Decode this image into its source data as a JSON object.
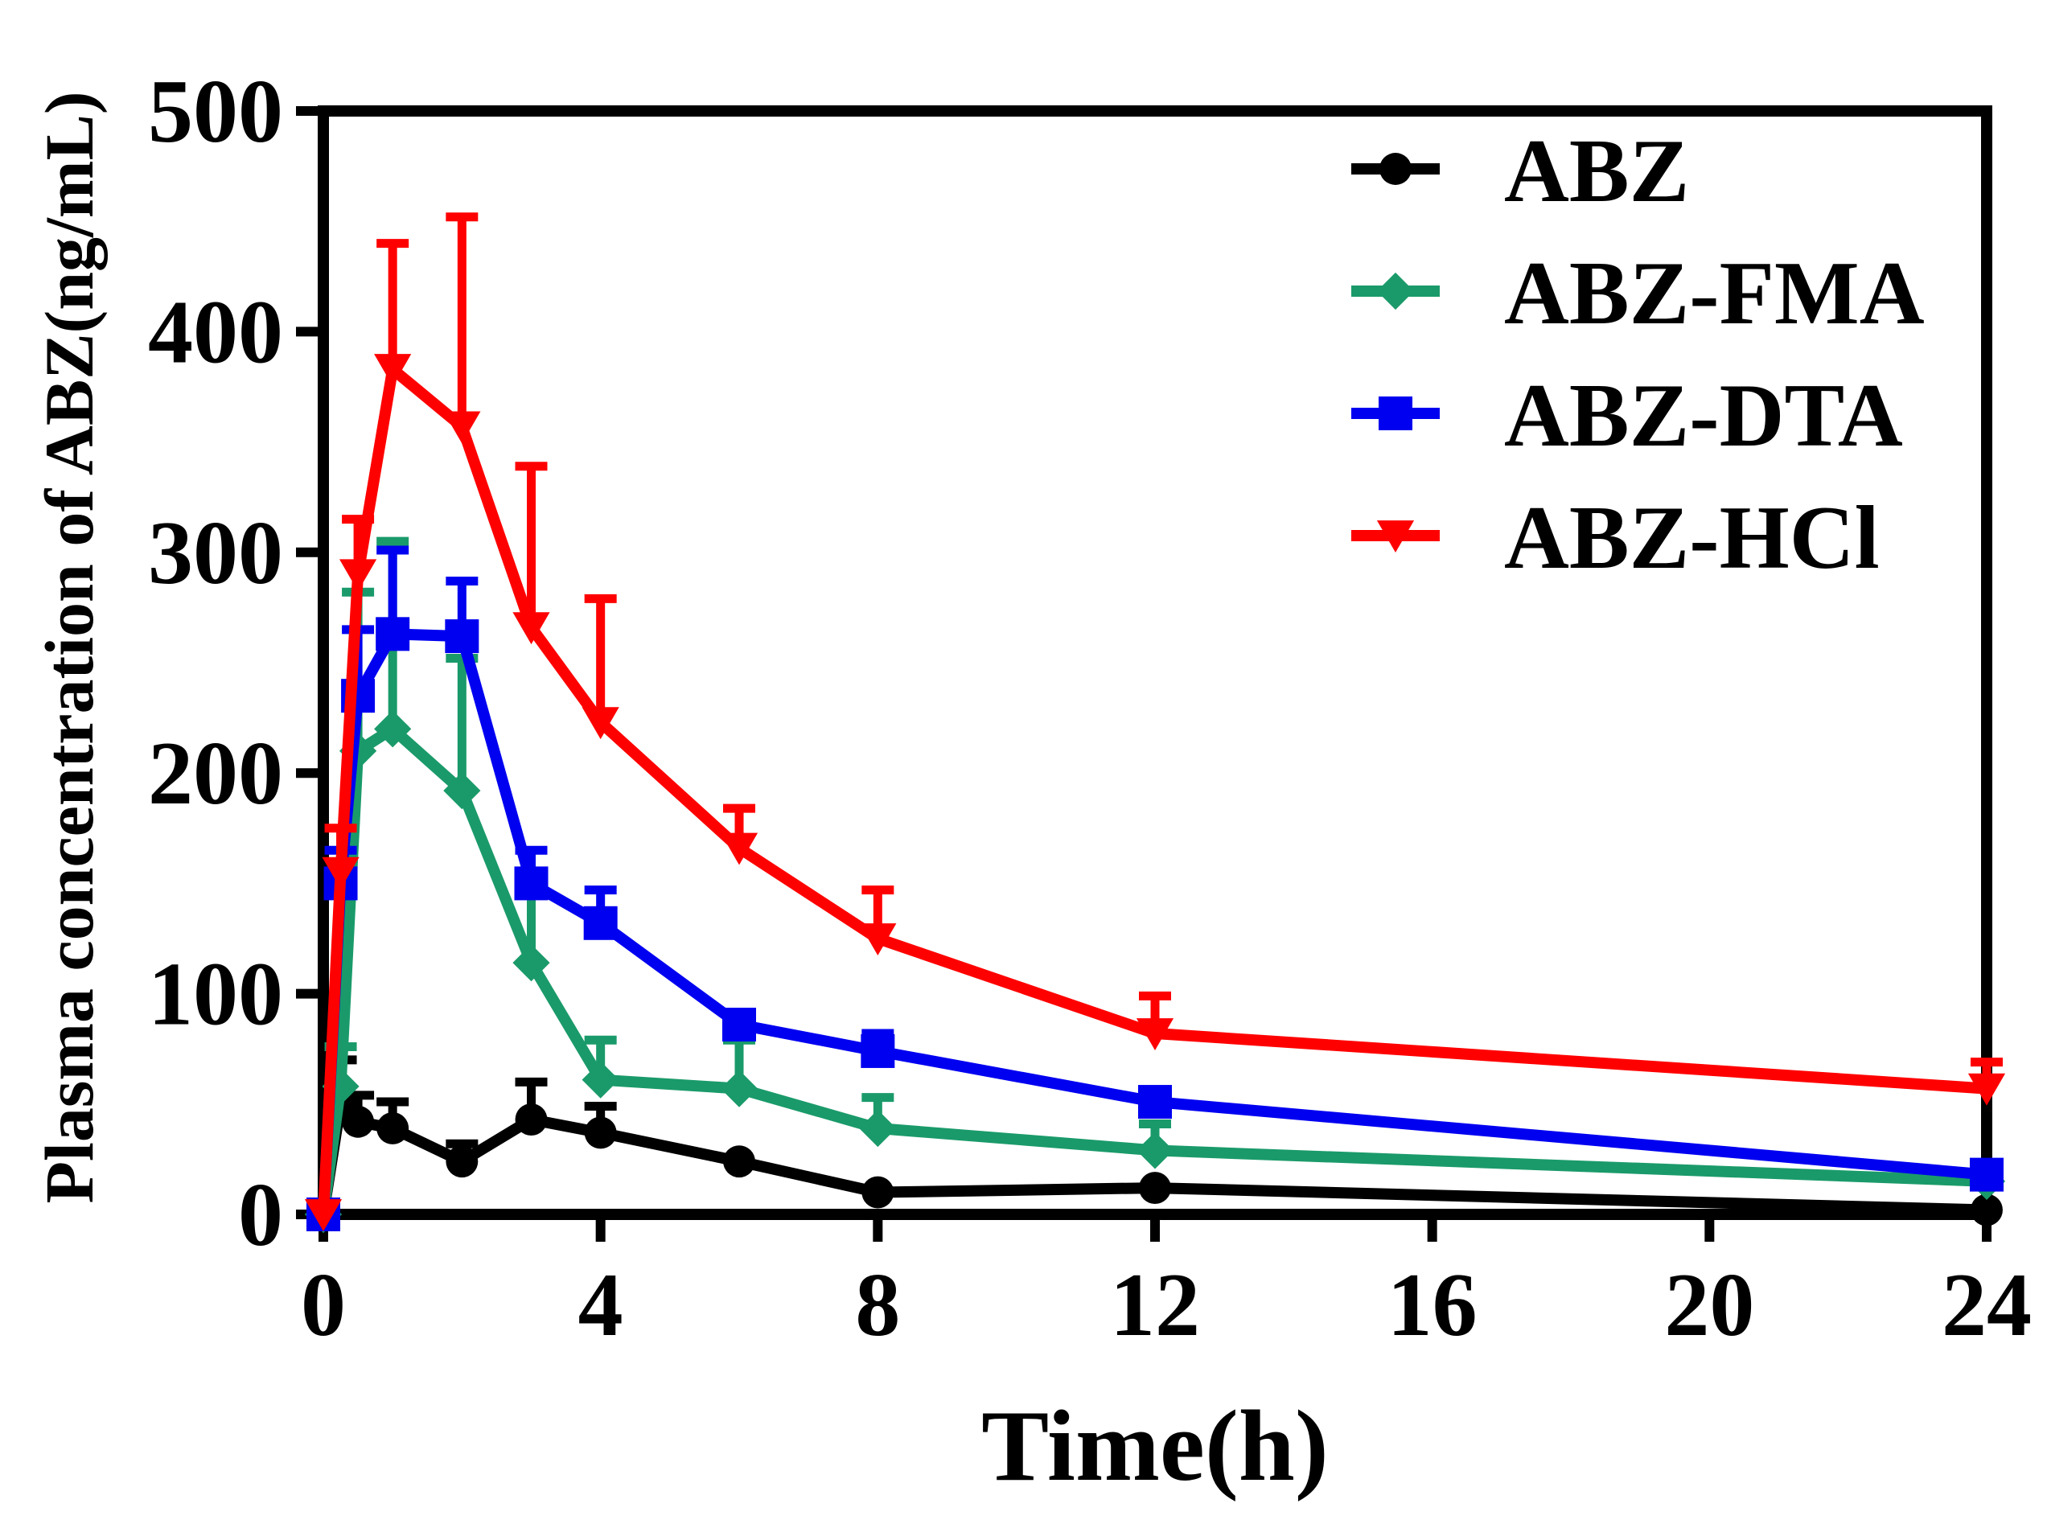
{
  "chart_data": {
    "type": "line",
    "title": "",
    "xlabel": "Time(h)",
    "ylabel": "Plasma concentration of ABZ(ng/mL)",
    "xlim": [
      0,
      24
    ],
    "ylim": [
      0,
      500
    ],
    "xticks": [
      0,
      4,
      8,
      12,
      16,
      20,
      24
    ],
    "yticks": [
      0,
      100,
      200,
      300,
      400,
      500
    ],
    "x": [
      0,
      0.25,
      0.5,
      1,
      2,
      3,
      4,
      6,
      8,
      12,
      24
    ],
    "legend_position": "top-right",
    "series": [
      {
        "name": "ABZ",
        "color": "#000000",
        "marker": "circle",
        "values": [
          0,
          50,
          42,
          39,
          24,
          43,
          37,
          24,
          10,
          12,
          2
        ],
        "errors": [
          0,
          20,
          12,
          12,
          8,
          17,
          12,
          0,
          0,
          0,
          0
        ]
      },
      {
        "name": "ABZ-FMA",
        "color": "#1A9A6A",
        "marker": "diamond",
        "values": [
          0,
          58,
          210,
          220,
          192,
          114,
          61,
          57,
          39,
          29,
          15
        ],
        "errors": [
          0,
          18,
          72,
          85,
          60,
          38,
          18,
          22,
          14,
          12,
          0
        ]
      },
      {
        "name": "ABZ-DTA",
        "color": "#0000F0",
        "marker": "square",
        "values": [
          0,
          150,
          235,
          263,
          262,
          150,
          132,
          86,
          74,
          51,
          18
        ],
        "errors": [
          0,
          15,
          30,
          38,
          25,
          15,
          15,
          0,
          8,
          0,
          0
        ]
      },
      {
        "name": "ABZ-HCl",
        "color": "#FF0000",
        "marker": "triangle-down",
        "values": [
          0,
          155,
          290,
          383,
          357,
          266,
          223,
          166,
          125,
          82,
          57
        ],
        "errors": [
          0,
          20,
          25,
          57,
          95,
          73,
          56,
          18,
          22,
          17,
          12
        ]
      }
    ]
  }
}
